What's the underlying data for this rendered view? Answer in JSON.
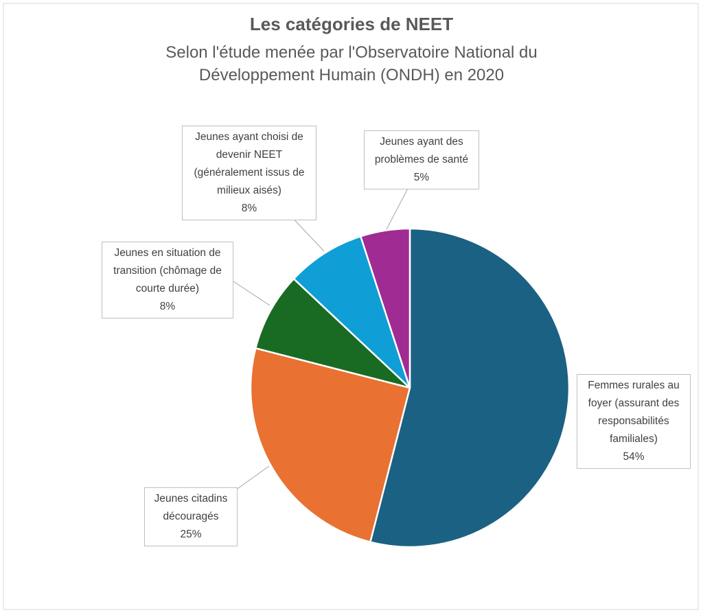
{
  "chart_data": {
    "type": "pie",
    "title": "Les catégories de NEET",
    "subtitle": "Selon l'étude menée par l'Observatoire National du Développement Humain (ONDH) en 2020",
    "categories": [
      "Femmes rurales au foyer (assurant des responsabilités familiales)",
      "Jeunes citadins découragés",
      "Jeunes en situation de transition (chômage de courte durée)",
      "Jeunes ayant choisi de devenir NEET (généralement issus de milieux aisés)",
      "Jeunes ayant des problèmes de santé"
    ],
    "values": [
      54,
      25,
      8,
      8,
      5
    ],
    "value_labels": [
      "54%",
      "25%",
      "8%",
      "8%",
      "5%"
    ],
    "colors": [
      "#1b6183",
      "#e97132",
      "#196b24",
      "#0f9ed5",
      "#a02b93"
    ]
  }
}
